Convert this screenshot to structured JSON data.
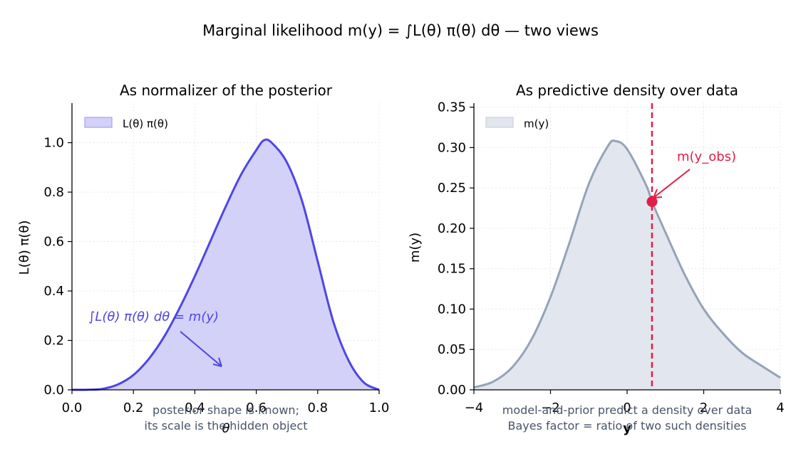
{
  "figure": {
    "suptitle": "Marginal likelihood m(y) = ∫L(θ) π(θ) dθ —  two views"
  },
  "colors": {
    "left_line": "#4f46e5",
    "left_fill": "#d3d1f8",
    "right_line": "#94a3b8",
    "right_fill": "#e2e6ee",
    "observed": "#e11d48",
    "note_text": "#475569",
    "grid": "#e5e7eb"
  },
  "left_panel": {
    "title": "As normalizer of the posterior",
    "annotation": "∫L(θ) π(θ) dθ = m(y)",
    "note_lines": [
      "posterior shape is known;",
      "its scale is the hidden object"
    ]
  },
  "right_panel": {
    "title": "As predictive density over data",
    "observed_label": "m(y_obs)",
    "note_lines": [
      "model-and-prior predict a density over data",
      "Bayes factor = ratio of two such densities"
    ]
  },
  "chart_data": [
    {
      "type": "area",
      "title": "As normalizer of the posterior",
      "xlabel": "θ",
      "ylabel": "L(θ) π(θ)",
      "xlim": [
        0.0,
        1.0
      ],
      "ylim": [
        0.0,
        1.16
      ],
      "xticks": [
        "0.0",
        "0.2",
        "0.4",
        "0.6",
        "0.8",
        "1.0"
      ],
      "yticks": [
        "0.0",
        "0.2",
        "0.4",
        "0.6",
        "0.8",
        "1.0"
      ],
      "grid": true,
      "legend": {
        "position": "top-left",
        "entries": [
          "L(θ) π(θ)"
        ]
      },
      "series": [
        {
          "name": "L(θ) π(θ)",
          "x": [
            0.0,
            0.05,
            0.1,
            0.15,
            0.2,
            0.25,
            0.3,
            0.35,
            0.4,
            0.45,
            0.5,
            0.55,
            0.6,
            0.625,
            0.65,
            0.7,
            0.75,
            0.8,
            0.85,
            0.9,
            0.95,
            1.0
          ],
          "y": [
            0.0,
            0.0002,
            0.004,
            0.022,
            0.06,
            0.125,
            0.215,
            0.33,
            0.46,
            0.6,
            0.74,
            0.87,
            0.97,
            1.01,
            1.0,
            0.92,
            0.76,
            0.52,
            0.28,
            0.12,
            0.03,
            0.0
          ]
        }
      ]
    },
    {
      "type": "area",
      "title": "As predictive density over data",
      "xlabel": "y",
      "ylabel": "m(y)",
      "xlim": [
        -4,
        4
      ],
      "ylim": [
        0.0,
        0.355
      ],
      "xticks": [
        "−4",
        "−2",
        "0",
        "2",
        "4"
      ],
      "yticks": [
        "0.00",
        "0.05",
        "0.10",
        "0.15",
        "0.20",
        "0.25",
        "0.30",
        "0.35"
      ],
      "grid": true,
      "legend": {
        "position": "top-left",
        "entries": [
          "m(y)"
        ]
      },
      "series": [
        {
          "name": "m(y)",
          "x": [
            -4.0,
            -3.5,
            -3.0,
            -2.5,
            -2.0,
            -1.5,
            -1.0,
            -0.5,
            -0.3,
            0.0,
            0.5,
            0.65,
            1.0,
            1.5,
            2.0,
            2.5,
            3.0,
            3.5,
            4.0
          ],
          "y": [
            0.003,
            0.01,
            0.028,
            0.062,
            0.115,
            0.183,
            0.255,
            0.302,
            0.308,
            0.298,
            0.253,
            0.233,
            0.195,
            0.143,
            0.1,
            0.07,
            0.046,
            0.03,
            0.015
          ]
        }
      ],
      "observed": {
        "x": 0.65,
        "y": 0.233
      }
    }
  ]
}
